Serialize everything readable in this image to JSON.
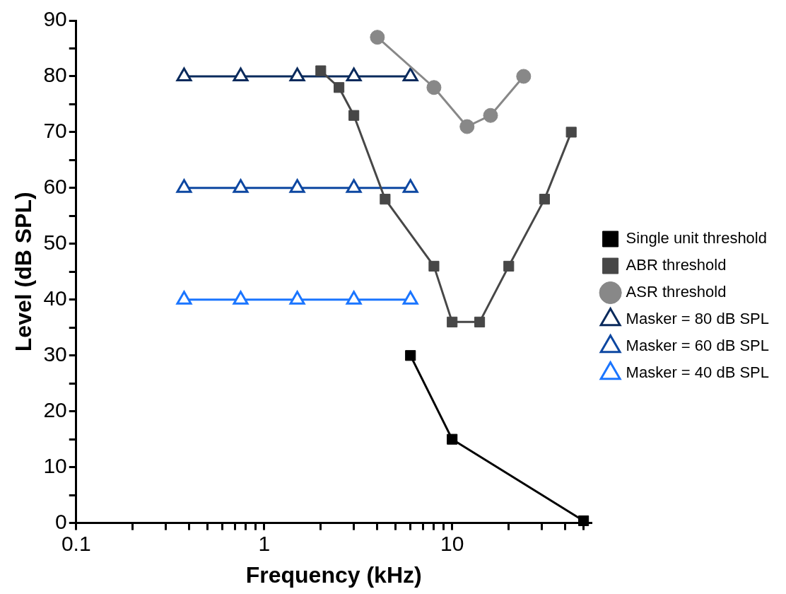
{
  "chart_data": {
    "type": "line",
    "xlabel": "Frequency (kHz)",
    "ylabel": "Level (dB SPL)",
    "log": "x",
    "grid": false,
    "legend": "right",
    "xlim": [
      0.1,
      55
    ],
    "ylim": [
      0,
      90
    ],
    "xticks": [
      0.1,
      {
        "value": 0.2,
        "label": null
      },
      {
        "value": 0.3,
        "label": null
      },
      {
        "value": 0.4,
        "label": null
      },
      {
        "value": 0.5,
        "label": null
      },
      {
        "value": 0.6,
        "label": null
      },
      {
        "value": 0.7,
        "label": null
      },
      {
        "value": 0.8,
        "label": null
      },
      {
        "value": 0.9,
        "label": null
      },
      1,
      {
        "value": 2,
        "label": null
      },
      {
        "value": 3,
        "label": null
      },
      {
        "value": 4,
        "label": null
      },
      {
        "value": 5,
        "label": null
      },
      {
        "value": 6,
        "label": null
      },
      {
        "value": 7,
        "label": null
      },
      {
        "value": 8,
        "label": null
      },
      {
        "value": 9,
        "label": null
      },
      10,
      {
        "value": 20,
        "label": null
      },
      {
        "value": 30,
        "label": null
      },
      {
        "value": 40,
        "label": null
      },
      {
        "value": 50,
        "label": null
      }
    ],
    "yticks": [
      0,
      {
        "value": 5,
        "label": null
      },
      10,
      {
        "value": 15,
        "label": null
      },
      20,
      {
        "value": 25,
        "label": null
      },
      30,
      {
        "value": 35,
        "label": null
      },
      40,
      {
        "value": 45,
        "label": null
      },
      50,
      {
        "value": 55,
        "label": null
      },
      60,
      {
        "value": 65,
        "label": null
      },
      70,
      {
        "value": 75,
        "label": null
      },
      80,
      {
        "value": 85,
        "label": null
      },
      90
    ],
    "series": [
      {
        "name": "Single unit threshold",
        "color": "#000000",
        "marker": "square",
        "x": [
          6,
          10,
          50
        ],
        "values": [
          30,
          15,
          0.4
        ]
      },
      {
        "name": "ABR threshold",
        "color": "#474747",
        "marker": "square",
        "x": [
          2,
          2.5,
          3,
          4.4,
          8,
          10,
          14,
          20,
          31,
          43
        ],
        "values": [
          81,
          78,
          73,
          58,
          46,
          36,
          36,
          46,
          58,
          70
        ]
      },
      {
        "name": "ASR threshold",
        "color": "#888888",
        "marker": "circle",
        "x": [
          4,
          8,
          12,
          16,
          24
        ],
        "values": [
          87,
          78,
          71,
          73,
          80
        ]
      },
      {
        "name": "Masker = 80 dB SPL",
        "color": "#0a2a5c",
        "marker": "triangle",
        "x": [
          0.375,
          0.75,
          1.5,
          3,
          6
        ],
        "values": [
          80,
          80,
          80,
          80,
          80
        ]
      },
      {
        "name": "Masker = 60 dB SPL",
        "color": "#0d47a1",
        "marker": "triangle",
        "x": [
          0.375,
          0.75,
          1.5,
          3,
          6
        ],
        "values": [
          60,
          60,
          60,
          60,
          60
        ]
      },
      {
        "name": "Masker = 40 dB SPL",
        "color": "#1a75ff",
        "marker": "triangle",
        "x": [
          0.375,
          0.75,
          1.5,
          3,
          6
        ],
        "values": [
          40,
          40,
          40,
          40,
          40
        ]
      }
    ]
  }
}
